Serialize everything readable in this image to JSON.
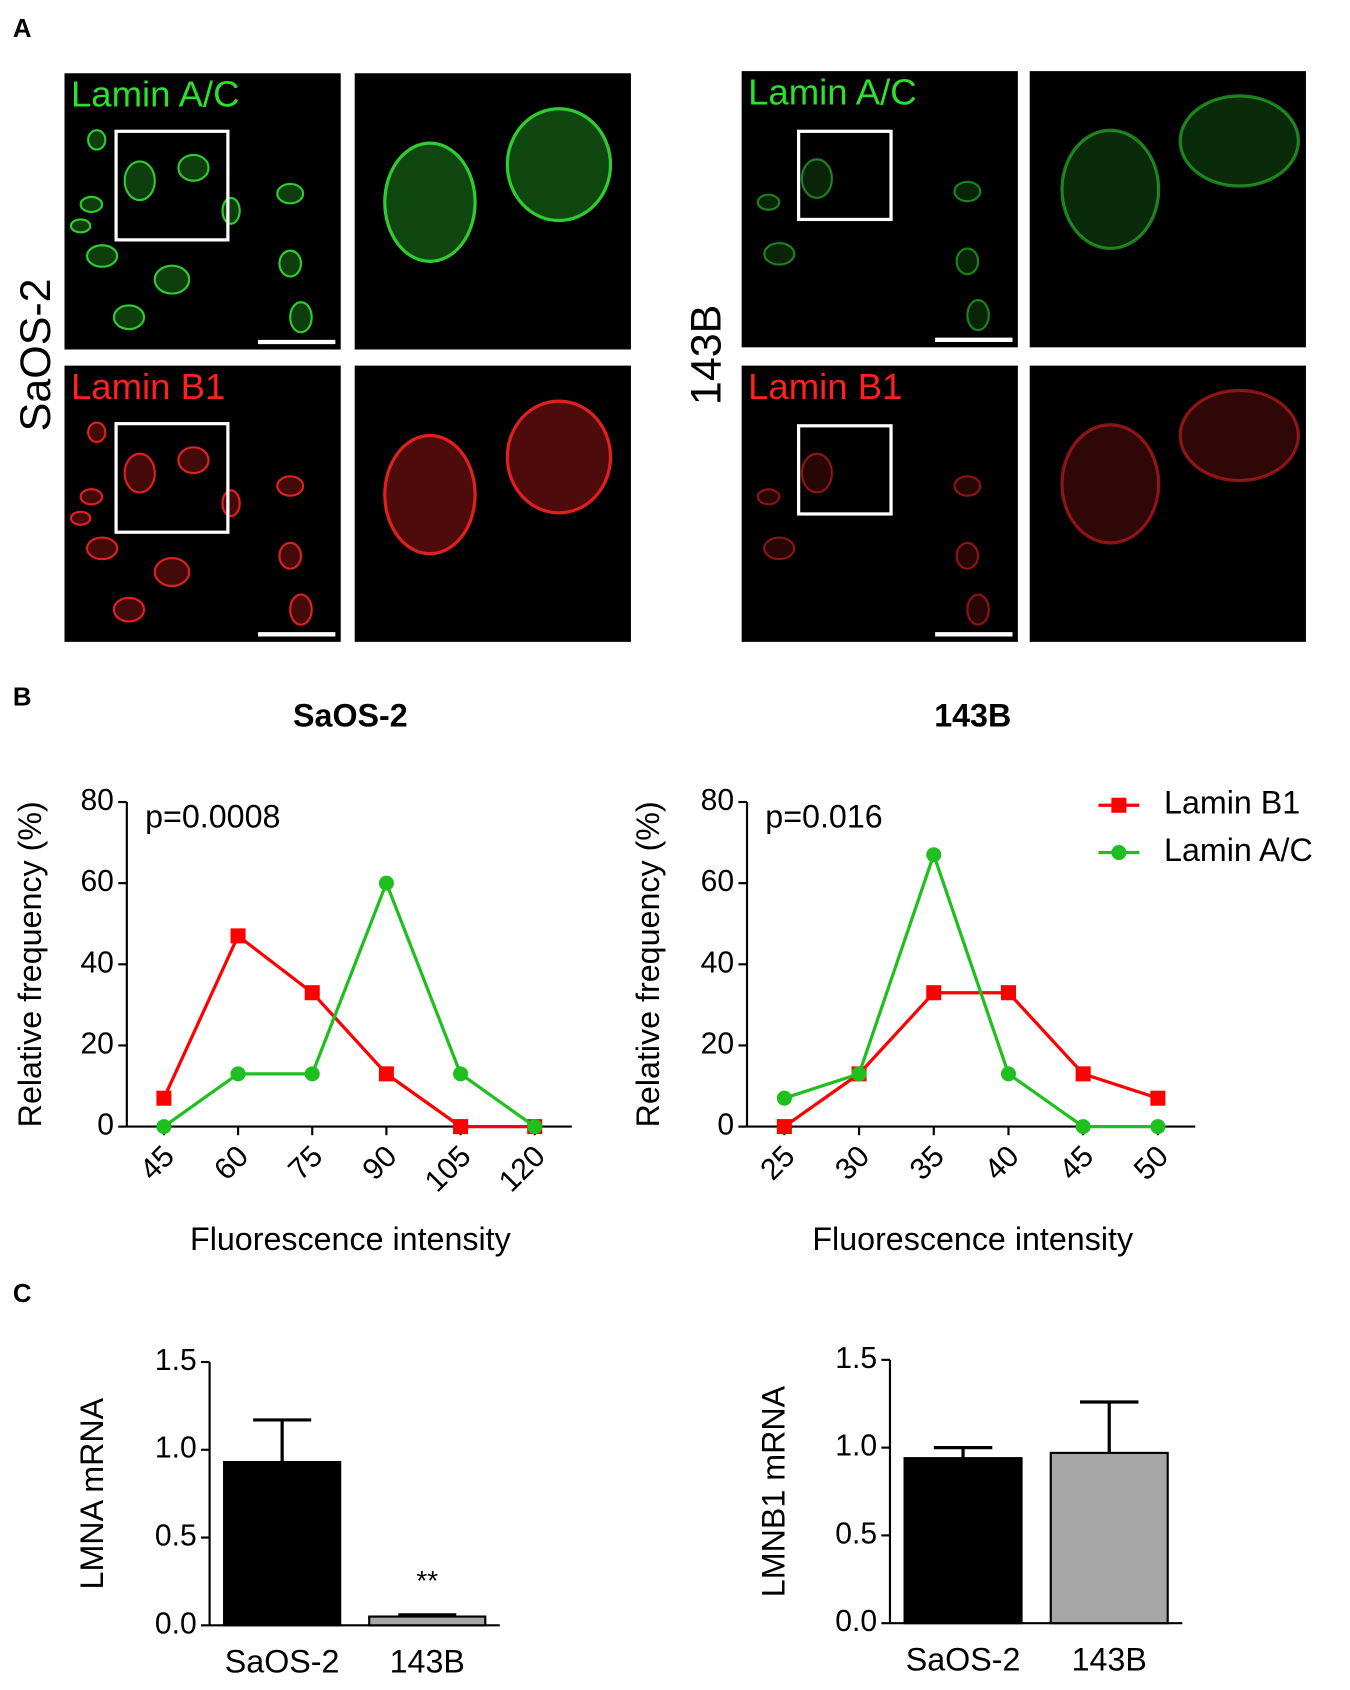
{
  "figure": {
    "panel_labels": [
      "A",
      "B",
      "C"
    ],
    "row_labels": [
      "Lamin A/C",
      "Lamin B1"
    ],
    "cell_lines": [
      "SaOS-2",
      "143B"
    ]
  },
  "chart_data": [
    {
      "type": "line",
      "title": "SaOS-2",
      "annotation": "p=0.0008",
      "x_label": "Fluorescence intensity",
      "y_label": "Relative frequency (%)",
      "categories": [
        "45",
        "60",
        "75",
        "90",
        "105",
        "120"
      ],
      "series": [
        {
          "name": "Lamin B1",
          "color": "#ff0000",
          "marker": "square",
          "values": [
            7,
            47,
            33,
            13,
            0,
            0
          ]
        },
        {
          "name": "Lamin A/C",
          "color": "#1fbf1f",
          "marker": "circle",
          "values": [
            0,
            13,
            13,
            60,
            13,
            0
          ]
        }
      ],
      "ylim": [
        0,
        80
      ],
      "yticks": [
        0,
        20,
        40,
        60,
        80
      ]
    },
    {
      "type": "line",
      "title": "143B",
      "annotation": "p=0.016",
      "x_label": "Fluorescence intensity",
      "y_label": "Relative frequency (%)",
      "categories": [
        "25",
        "30",
        "35",
        "40",
        "45",
        "50"
      ],
      "series": [
        {
          "name": "Lamin B1",
          "color": "#ff0000",
          "marker": "square",
          "values": [
            0,
            13,
            33,
            33,
            13,
            7
          ]
        },
        {
          "name": "Lamin A/C",
          "color": "#1fbf1f",
          "marker": "circle",
          "values": [
            7,
            13,
            67,
            13,
            0,
            0
          ]
        }
      ],
      "ylim": [
        0,
        80
      ],
      "yticks": [
        0,
        20,
        40,
        60,
        80
      ],
      "legend": "outside-top-right"
    },
    {
      "type": "bar",
      "y_label": "LMNA mRNA",
      "categories": [
        "SaOS-2",
        "143B"
      ],
      "values": [
        0.93,
        0.05
      ],
      "errors": [
        0.24,
        0.01
      ],
      "colors": [
        "#000000",
        "#a6a6a6"
      ],
      "annotations": [
        null,
        "**"
      ],
      "ylim": [
        0,
        1.5
      ],
      "yticks": [
        {
          "value": 0,
          "label": "0.0"
        },
        {
          "value": 0.5,
          "label": "0.5"
        },
        {
          "value": 1,
          "label": "1.0"
        },
        {
          "value": 1.5,
          "label": "1.5"
        }
      ]
    },
    {
      "type": "bar",
      "y_label": "LMNB1 mRNA",
      "categories": [
        "SaOS-2",
        "143B"
      ],
      "values": [
        0.94,
        0.97
      ],
      "errors": [
        0.06,
        0.29
      ],
      "colors": [
        "#000000",
        "#a6a6a6"
      ],
      "ylim": [
        0,
        1.5
      ],
      "yticks": [
        {
          "value": 0,
          "label": "0.0"
        },
        {
          "value": 0.5,
          "label": "0.5"
        },
        {
          "value": 1,
          "label": "1.0"
        },
        {
          "value": 1.5,
          "label": "1.5"
        }
      ]
    }
  ]
}
